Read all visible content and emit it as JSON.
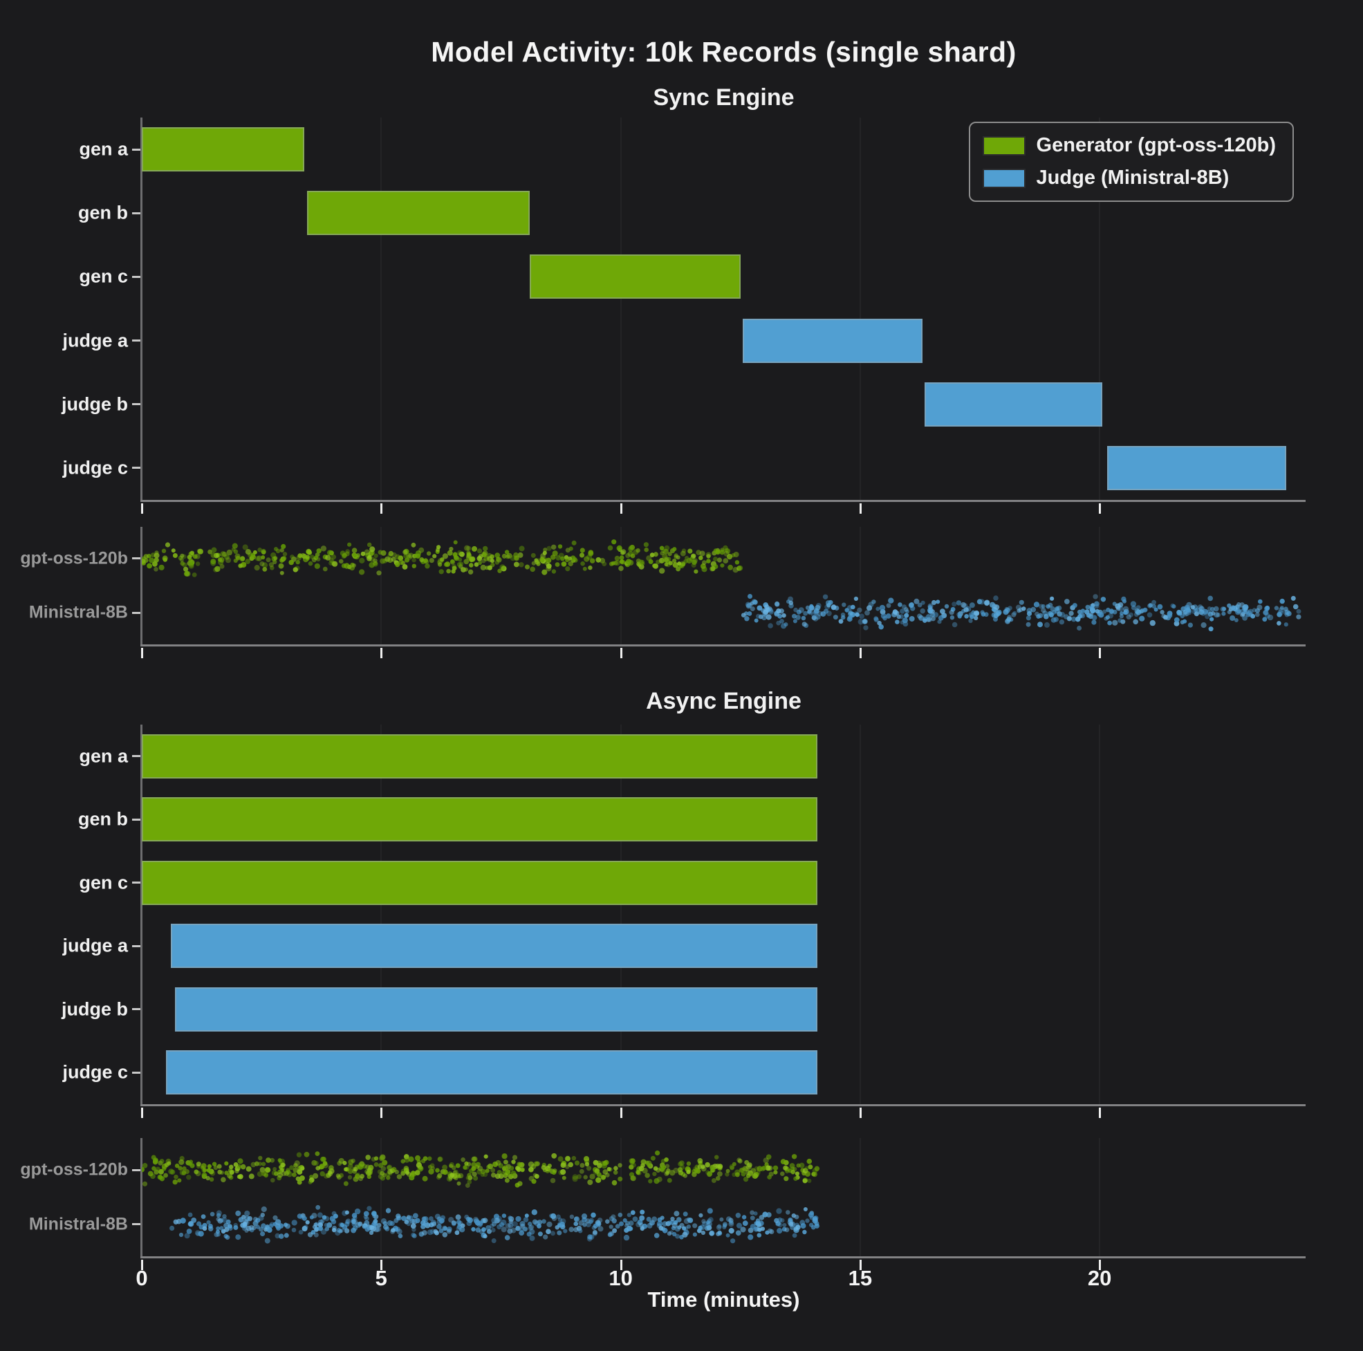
{
  "title": "Model Activity: 10k Records (single shard)",
  "xlabel": "Time (minutes)",
  "colors": {
    "background": "#1b1b1d",
    "generator": "#6fa807",
    "judge": "#519fd2",
    "text": "#f5f5f5",
    "muted_label": "#9a9a9a",
    "generator_dots": [
      "#7fb513",
      "#6da306",
      "#8fc41f",
      "#619a05"
    ],
    "judge_dots": [
      "#58a6d9",
      "#4f9ed2",
      "#6ab3e2",
      "#4691c4"
    ]
  },
  "legend": {
    "items": [
      {
        "label": "Generator (gpt-oss-120b)",
        "series": "generator"
      },
      {
        "label": "Judge (Ministral-8B)",
        "series": "judge"
      }
    ]
  },
  "chart_data": [
    {
      "type": "gantt",
      "engine": "Sync Engine",
      "xlim": [
        0,
        24.3
      ],
      "x_ticks": [
        0,
        5,
        10,
        15,
        20
      ],
      "x_tick_labels": [
        "0",
        "5",
        "10",
        "15",
        "20"
      ],
      "grid": true,
      "rows": [
        {
          "label": "gen a",
          "series": "generator",
          "start": 0,
          "end": 3.4
        },
        {
          "label": "gen b",
          "series": "generator",
          "start": 3.45,
          "end": 8.1
        },
        {
          "label": "gen c",
          "series": "generator",
          "start": 8.1,
          "end": 12.5
        },
        {
          "label": "judge a",
          "series": "judge",
          "start": 12.55,
          "end": 16.3
        },
        {
          "label": "judge b",
          "series": "judge",
          "start": 16.35,
          "end": 20.05
        },
        {
          "label": "judge c",
          "series": "judge",
          "start": 20.15,
          "end": 23.9
        }
      ],
      "strip_rows": [
        {
          "label": "gpt-oss-120b",
          "series": "generator",
          "start": 0,
          "end": 12.5
        },
        {
          "label": "Ministral-8B",
          "series": "judge",
          "start": 12.55,
          "end": 24.2
        }
      ]
    },
    {
      "type": "gantt",
      "engine": "Async Engine",
      "xlim": [
        0,
        24.3
      ],
      "x_ticks": [
        0,
        5,
        10,
        15,
        20
      ],
      "x_tick_labels": [
        "0",
        "5",
        "10",
        "15",
        "20"
      ],
      "grid": true,
      "rows": [
        {
          "label": "gen a",
          "series": "generator",
          "start": 0,
          "end": 14.1
        },
        {
          "label": "gen b",
          "series": "generator",
          "start": 0,
          "end": 14.1
        },
        {
          "label": "gen c",
          "series": "generator",
          "start": 0,
          "end": 14.1
        },
        {
          "label": "judge a",
          "series": "judge",
          "start": 0.6,
          "end": 14.1
        },
        {
          "label": "judge b",
          "series": "judge",
          "start": 0.7,
          "end": 14.1
        },
        {
          "label": "judge c",
          "series": "judge",
          "start": 0.5,
          "end": 14.1
        }
      ],
      "strip_rows": [
        {
          "label": "gpt-oss-120b",
          "series": "generator",
          "start": 0,
          "end": 14.1
        },
        {
          "label": "Ministral-8B",
          "series": "judge",
          "start": 0.55,
          "end": 14.1
        }
      ]
    }
  ]
}
